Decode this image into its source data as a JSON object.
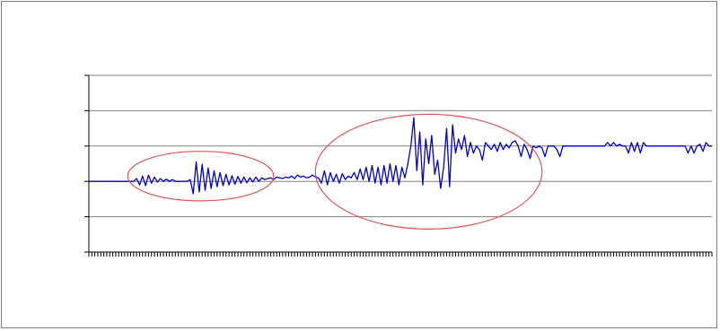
{
  "chart_data": {
    "type": "line",
    "title": "",
    "xlabel": "",
    "ylabel": "",
    "ylim": [
      -2,
      3
    ],
    "grid": true,
    "legend": "none",
    "series": [
      {
        "color": "#0000cc",
        "x": [
          0,
          1,
          2,
          3,
          4,
          5,
          6,
          7,
          8,
          9,
          10,
          11,
          12,
          13,
          14,
          15,
          16,
          17,
          18,
          19,
          20,
          21,
          22,
          23,
          24,
          25,
          26,
          27,
          28,
          29,
          30,
          31,
          32,
          33,
          34,
          35,
          36,
          37,
          38,
          39,
          40,
          41,
          42,
          43,
          44,
          45,
          46,
          47,
          48,
          49,
          50,
          51,
          52,
          53,
          54,
          55,
          56,
          57,
          58,
          59,
          60,
          61,
          62,
          63,
          64,
          65,
          66,
          67,
          68,
          69,
          70,
          71,
          72,
          73,
          74,
          75,
          76,
          77,
          78,
          79,
          80,
          81,
          82,
          83,
          84,
          85,
          86,
          87,
          88,
          89,
          90,
          91,
          92,
          93,
          94,
          95,
          96,
          97,
          98,
          99,
          100,
          101,
          102,
          103,
          104,
          105,
          106,
          107,
          108,
          109,
          110,
          111,
          112,
          113,
          114,
          115,
          116,
          117,
          118,
          119,
          120,
          121,
          122,
          123,
          124,
          125,
          126,
          127,
          128,
          129,
          130,
          131,
          132,
          133,
          134,
          135,
          136,
          137,
          138,
          139,
          140,
          141,
          142,
          143,
          144,
          145,
          146,
          147,
          148,
          149,
          150,
          151,
          152,
          153,
          154,
          155,
          156,
          157,
          158,
          159,
          160,
          161,
          162,
          163,
          164,
          165,
          166,
          167,
          168,
          169,
          170,
          171,
          172,
          173,
          174,
          175,
          176,
          177,
          178,
          179,
          180,
          181,
          182,
          183,
          184,
          185,
          186,
          187,
          188,
          189,
          190,
          191,
          192,
          193,
          194,
          195,
          196,
          197,
          198,
          199,
          200,
          201,
          202,
          203,
          204,
          205,
          206,
          207,
          208,
          209
        ],
        "y": [
          0,
          0,
          0,
          0,
          0,
          0,
          0,
          0,
          0,
          0,
          0,
          0,
          0,
          0,
          0,
          0,
          0.08,
          -0.1,
          0.15,
          -0.12,
          0.18,
          -0.05,
          0.12,
          -0.02,
          0.08,
          0,
          0.06,
          0,
          0.05,
          0,
          0,
          0,
          0,
          0,
          0.05,
          -0.35,
          0.55,
          -0.3,
          0.48,
          -0.25,
          0.38,
          -0.2,
          0.3,
          -0.15,
          0.25,
          -0.12,
          0.2,
          -0.1,
          0.16,
          -0.08,
          0.14,
          -0.05,
          0.12,
          -0.04,
          0.1,
          -0.02,
          0.12,
          0,
          0.1,
          0.05,
          0.08,
          0.1,
          0.05,
          0.12,
          0.1,
          0.08,
          0.12,
          0.1,
          0.15,
          0.08,
          0.18,
          0.12,
          0.15,
          0.1,
          0.12,
          0.18,
          0.12,
          0.1,
          -0.05,
          0.3,
          -0.1,
          0.25,
          0,
          0.2,
          -0.05,
          0.22,
          0.05,
          0.15,
          0.1,
          0.25,
          0.05,
          0.35,
          0.05,
          0.4,
          0,
          0.45,
          -0.05,
          0.4,
          -0.1,
          0.45,
          -0.05,
          0.5,
          0,
          0.45,
          -0.1,
          0.4,
          0.1,
          0.5,
          1.0,
          1.8,
          0.3,
          1.4,
          -0.1,
          1.2,
          0.5,
          1.3,
          0.2,
          0.6,
          -0.2,
          0.4,
          1.5,
          -0.15,
          1.6,
          0.8,
          1.2,
          0.9,
          1.3,
          0.7,
          1.1,
          0.8,
          1.0,
          0.9,
          0.6,
          1.1,
          1.0,
          0.9,
          1.05,
          0.85,
          1.1,
          0.9,
          1.05,
          0.95,
          1.1,
          1.15,
          1.0,
          0.7,
          1.05,
          0.9,
          0.65,
          1.0,
          0.95,
          1.0,
          0.95,
          0.7,
          1.0,
          1.0,
          1.0,
          0.9,
          0.7,
          1.0,
          1.0,
          1.0,
          1.0,
          1.0,
          1.0,
          1.0,
          1.0,
          1.0,
          1.0,
          1.0,
          1.0,
          1.0,
          1.0,
          1.0,
          1.1,
          1.0,
          1.1,
          1.0,
          1.05,
          1.0,
          1.0,
          0.8,
          1.1,
          0.85,
          1.1,
          0.8,
          1.1,
          1.0,
          1.0,
          1.0,
          1.0,
          1.0,
          1.0,
          1.0,
          1.0,
          1.0,
          1.0,
          1.0,
          1.0,
          1.0,
          1.0,
          0.8,
          1.0,
          0.8,
          1.0,
          1.05,
          0.85,
          1.1,
          1.0,
          1.0
        ]
      }
    ],
    "annotations": [
      {
        "shape": "ellipse",
        "color": "#e05555",
        "x_range": [
          13,
          62
        ],
        "y_range": [
          -0.55,
          0.85
        ]
      },
      {
        "shape": "ellipse",
        "color": "#e05555",
        "x_range": [
          76,
          152
        ],
        "y_range": [
          -1.35,
          1.9
        ]
      }
    ]
  }
}
